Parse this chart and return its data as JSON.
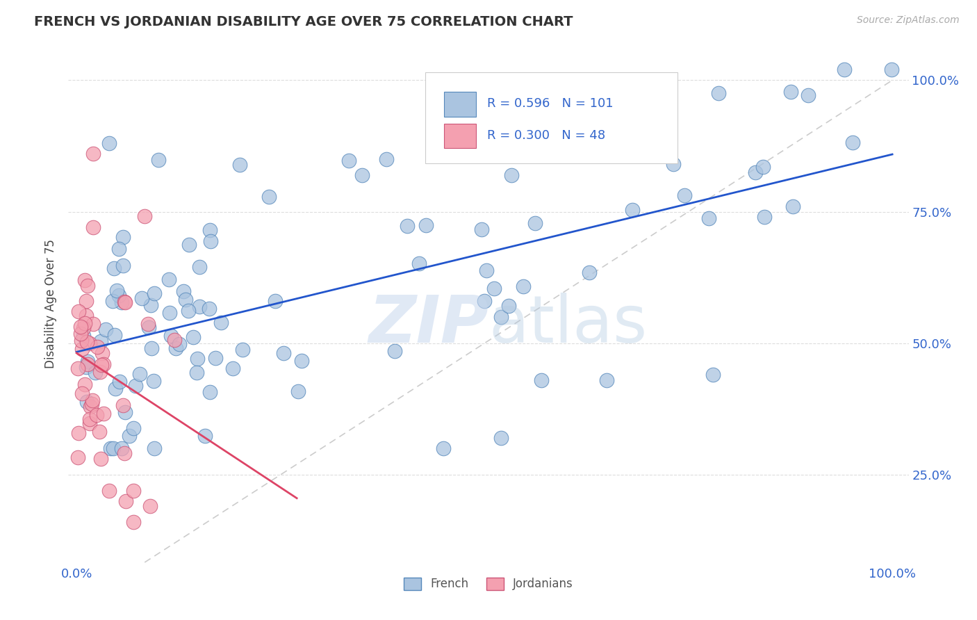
{
  "title": "FRENCH VS JORDANIAN DISABILITY AGE OVER 75 CORRELATION CHART",
  "source_text": "Source: ZipAtlas.com",
  "ylabel": "Disability Age Over 75",
  "french_color": "#aac4e0",
  "french_edge": "#5588bb",
  "jordan_color": "#f4a0b0",
  "jordan_edge": "#cc5577",
  "french_R": 0.596,
  "french_N": 101,
  "jordan_R": 0.3,
  "jordan_N": 48,
  "trend_blue": "#2255cc",
  "trend_pink": "#dd4466",
  "ref_line_color": "#cccccc",
  "watermark_zip_color": "#c8d8ee",
  "watermark_atlas_color": "#b0c8e0"
}
